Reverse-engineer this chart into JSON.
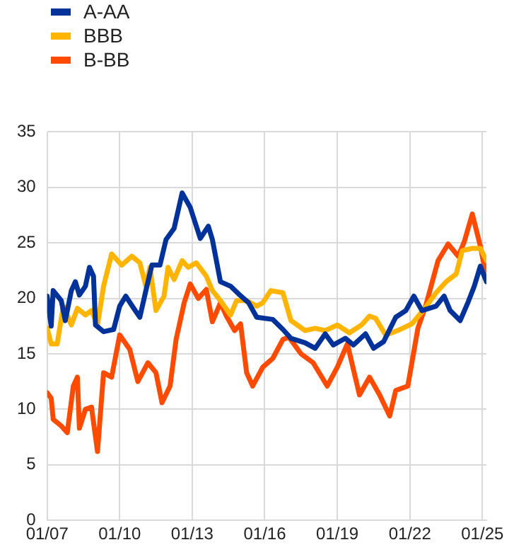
{
  "chart_data": {
    "type": "line",
    "legend": "top left",
    "grid": true,
    "marker": "none",
    "line_style": "solid",
    "xlim": [
      "2007-01",
      "2025-03"
    ],
    "xticks": [
      {
        "value": "2007-01",
        "label": "01/07"
      },
      {
        "value": "2010-01",
        "label": "01/10"
      },
      {
        "value": "2013-01",
        "label": "01/13"
      },
      {
        "value": "2016-01",
        "label": "01/16"
      },
      {
        "value": "2019-01",
        "label": "01/19"
      },
      {
        "value": "2022-01",
        "label": "01/22"
      },
      {
        "value": "2025-01",
        "label": "01/25"
      }
    ],
    "ylim": [
      0,
      35
    ],
    "yticks": [
      0,
      5,
      10,
      15,
      20,
      25,
      30,
      35
    ],
    "series": [
      {
        "name": "A-AA",
        "color": "#003299",
        "x": [
          "2007-01",
          "2007-03",
          "2007-04",
          "2007-08",
          "2007-10",
          "2008-01",
          "2008-03",
          "2008-05",
          "2008-08",
          "2008-10",
          "2008-12",
          "2009-01",
          "2009-05",
          "2009-10",
          "2010-01",
          "2010-04",
          "2010-08",
          "2010-11",
          "2011-02",
          "2011-05",
          "2011-09",
          "2011-12",
          "2012-04",
          "2012-08",
          "2012-12",
          "2013-05",
          "2013-09",
          "2013-11",
          "2014-03",
          "2014-08",
          "2014-12",
          "2015-05",
          "2015-09",
          "2016-05",
          "2016-10",
          "2017-02",
          "2017-09",
          "2018-02",
          "2018-07",
          "2018-11",
          "2019-05",
          "2019-09",
          "2020-03",
          "2020-07",
          "2020-12",
          "2021-06",
          "2021-11",
          "2022-03",
          "2022-07",
          "2023-02",
          "2023-06",
          "2023-09",
          "2024-02",
          "2024-06",
          "2024-09",
          "2024-12",
          "2025-03"
        ],
        "values": [
          20.2,
          17.5,
          20.7,
          19.8,
          18,
          20.7,
          21.5,
          20.3,
          21.1,
          22.8,
          22,
          17.6,
          17,
          17.2,
          19.3,
          20.2,
          19.1,
          18.3,
          20.7,
          23,
          23,
          25.3,
          26.3,
          29.5,
          28.2,
          25.4,
          26.5,
          25.3,
          21.5,
          21.1,
          20.4,
          19.6,
          18.3,
          18.1,
          17.2,
          16.4,
          16,
          15.5,
          16.8,
          15.8,
          16.4,
          15.8,
          16.8,
          15.5,
          16.1,
          18.3,
          18.9,
          20.2,
          18.9,
          19.3,
          20.2,
          18.9,
          18,
          19.7,
          21.1,
          22.9,
          21.5
        ]
      },
      {
        "name": "BBB",
        "color": "#ffb400",
        "x": [
          "2007-01",
          "2007-03",
          "2007-06",
          "2007-09",
          "2008-01",
          "2008-04",
          "2008-08",
          "2008-11",
          "2009-02",
          "2009-05",
          "2009-09",
          "2010-02",
          "2010-07",
          "2010-11",
          "2011-02",
          "2011-04",
          "2011-07",
          "2011-11",
          "2012-01",
          "2012-04",
          "2012-08",
          "2012-11",
          "2013-03",
          "2013-08",
          "2013-11",
          "2014-03",
          "2014-08",
          "2014-11",
          "2015-04",
          "2015-09",
          "2015-12",
          "2016-04",
          "2016-10",
          "2017-02",
          "2017-09",
          "2018-02",
          "2018-07",
          "2019-01",
          "2019-07",
          "2020-01",
          "2020-05",
          "2020-08",
          "2021-01",
          "2021-07",
          "2022-02",
          "2022-08",
          "2023-02",
          "2023-07",
          "2023-12",
          "2024-03",
          "2024-08",
          "2024-12",
          "2025-03"
        ],
        "values": [
          17.3,
          15.9,
          15.9,
          19.3,
          17.6,
          19.1,
          18.5,
          18.9,
          17.6,
          21.1,
          24,
          23,
          23.8,
          23.2,
          21.1,
          22.8,
          18.9,
          20.2,
          22.8,
          21.7,
          23.4,
          22.8,
          23.2,
          22,
          20.7,
          19.8,
          18.5,
          19.8,
          19.8,
          19.3,
          19.6,
          20.7,
          20.5,
          18,
          17.1,
          17.3,
          17.1,
          17.6,
          16.9,
          17.6,
          18.4,
          18.2,
          16.7,
          17.1,
          17.7,
          19,
          20.5,
          21.5,
          22.2,
          24.3,
          24.5,
          24.5,
          23.4
        ]
      },
      {
        "name": "B-BB",
        "color": "#ff4b00",
        "x": [
          "2007-01",
          "2007-03",
          "2007-04",
          "2007-08",
          "2007-11",
          "2008-02",
          "2008-04",
          "2008-05",
          "2008-08",
          "2008-11",
          "2009-02",
          "2009-05",
          "2009-09",
          "2010-01",
          "2010-06",
          "2010-10",
          "2011-03",
          "2011-07",
          "2011-10",
          "2012-02",
          "2012-05",
          "2012-09",
          "2012-12",
          "2013-04",
          "2013-08",
          "2013-11",
          "2014-03",
          "2014-06",
          "2014-10",
          "2015-01",
          "2015-04",
          "2015-07",
          "2015-12",
          "2016-05",
          "2016-10",
          "2017-01",
          "2017-07",
          "2018-01",
          "2018-08",
          "2019-01",
          "2019-06",
          "2019-12",
          "2020-05",
          "2020-10",
          "2021-03",
          "2021-06",
          "2021-12",
          "2022-05",
          "2022-09",
          "2023-03",
          "2023-08",
          "2024-01",
          "2024-04",
          "2024-08",
          "2024-12",
          "2025-03"
        ],
        "values": [
          11.5,
          11,
          9.1,
          8.5,
          7.9,
          12.1,
          12.9,
          8.3,
          10,
          10.2,
          6.2,
          13.3,
          12.9,
          16.7,
          15.4,
          12.5,
          14.2,
          13.3,
          10.6,
          12.1,
          16.3,
          19.6,
          21.3,
          20,
          20.8,
          17.9,
          19.6,
          18.4,
          17.1,
          17.7,
          13.3,
          12.1,
          13.8,
          14.6,
          16.3,
          16.5,
          15,
          14.2,
          12.1,
          13.8,
          15.9,
          11.3,
          12.9,
          11.3,
          9.4,
          11.7,
          12.1,
          17.3,
          19.4,
          23.4,
          24.9,
          23.8,
          25.1,
          27.6,
          24.7,
          21.9
        ]
      }
    ]
  }
}
